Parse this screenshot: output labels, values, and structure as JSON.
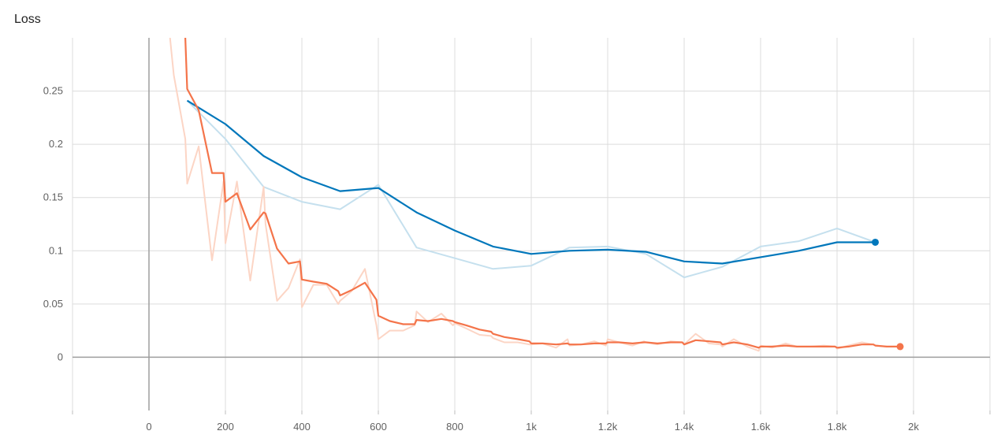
{
  "title": "Loss",
  "chart_data": {
    "type": "line",
    "title": "Loss",
    "xlabel": "",
    "ylabel": "",
    "xlim": [
      -200,
      2200
    ],
    "ylim": [
      -0.05,
      0.3
    ],
    "x_ticks": [
      0,
      200,
      400,
      600,
      800,
      1000,
      1200,
      1400,
      1600,
      1800,
      2000
    ],
    "x_tick_labels": [
      "0",
      "200",
      "400",
      "600",
      "800",
      "1k",
      "1.2k",
      "1.4k",
      "1.6k",
      "1.8k",
      "2k"
    ],
    "y_ticks": [
      0,
      0.05,
      0.1,
      0.15,
      0.2,
      0.25
    ],
    "y_tick_labels": [
      "0",
      "0.05",
      "0.1",
      "0.15",
      "0.2",
      "0.25"
    ],
    "grid": true,
    "series": [
      {
        "color": "#0077bb",
        "raw_color": "#c5e0ee",
        "smoothed": [
          [
            100,
            0.241
          ],
          [
            200,
            0.219
          ],
          [
            300,
            0.189
          ],
          [
            400,
            0.169
          ],
          [
            500,
            0.156
          ],
          [
            600,
            0.159
          ],
          [
            700,
            0.136
          ],
          [
            800,
            0.119
          ],
          [
            900,
            0.104
          ],
          [
            1000,
            0.097
          ],
          [
            1100,
            0.1
          ],
          [
            1200,
            0.101
          ],
          [
            1300,
            0.099
          ],
          [
            1400,
            0.09
          ],
          [
            1500,
            0.088
          ],
          [
            1600,
            0.094
          ],
          [
            1700,
            0.1
          ],
          [
            1800,
            0.108
          ],
          [
            1900,
            0.108
          ]
        ],
        "raw": [
          [
            100,
            0.241
          ],
          [
            200,
            0.205
          ],
          [
            300,
            0.16
          ],
          [
            400,
            0.146
          ],
          [
            500,
            0.139
          ],
          [
            600,
            0.162
          ],
          [
            700,
            0.103
          ],
          [
            800,
            0.093
          ],
          [
            900,
            0.083
          ],
          [
            1000,
            0.086
          ],
          [
            1100,
            0.103
          ],
          [
            1200,
            0.104
          ],
          [
            1300,
            0.097
          ],
          [
            1400,
            0.075
          ],
          [
            1500,
            0.085
          ],
          [
            1600,
            0.104
          ],
          [
            1700,
            0.109
          ],
          [
            1800,
            0.121
          ],
          [
            1900,
            0.108
          ]
        ]
      },
      {
        "color": "#f4744a",
        "raw_color": "#fcd5c5",
        "smoothed": [
          [
            95,
            0.3
          ],
          [
            100,
            0.252
          ],
          [
            130,
            0.232
          ],
          [
            165,
            0.173
          ],
          [
            195,
            0.173
          ],
          [
            200,
            0.146
          ],
          [
            230,
            0.154
          ],
          [
            265,
            0.12
          ],
          [
            300,
            0.136
          ],
          [
            305,
            0.135
          ],
          [
            335,
            0.102
          ],
          [
            365,
            0.088
          ],
          [
            395,
            0.09
          ],
          [
            400,
            0.073
          ],
          [
            430,
            0.071
          ],
          [
            465,
            0.069
          ],
          [
            495,
            0.062
          ],
          [
            500,
            0.058
          ],
          [
            530,
            0.063
          ],
          [
            565,
            0.07
          ],
          [
            595,
            0.054
          ],
          [
            600,
            0.039
          ],
          [
            630,
            0.034
          ],
          [
            665,
            0.031
          ],
          [
            695,
            0.031
          ],
          [
            700,
            0.035
          ],
          [
            730,
            0.034
          ],
          [
            765,
            0.036
          ],
          [
            795,
            0.034
          ],
          [
            800,
            0.033
          ],
          [
            830,
            0.03
          ],
          [
            865,
            0.026
          ],
          [
            895,
            0.024
          ],
          [
            900,
            0.022
          ],
          [
            930,
            0.019
          ],
          [
            965,
            0.017
          ],
          [
            995,
            0.015
          ],
          [
            1000,
            0.013
          ],
          [
            1030,
            0.013
          ],
          [
            1065,
            0.012
          ],
          [
            1095,
            0.013
          ],
          [
            1100,
            0.012
          ],
          [
            1130,
            0.012
          ],
          [
            1165,
            0.013
          ],
          [
            1195,
            0.013
          ],
          [
            1200,
            0.014
          ],
          [
            1230,
            0.014
          ],
          [
            1265,
            0.013
          ],
          [
            1295,
            0.014
          ],
          [
            1300,
            0.014
          ],
          [
            1330,
            0.013
          ],
          [
            1365,
            0.014
          ],
          [
            1395,
            0.014
          ],
          [
            1400,
            0.012
          ],
          [
            1430,
            0.016
          ],
          [
            1465,
            0.015
          ],
          [
            1495,
            0.014
          ],
          [
            1500,
            0.012
          ],
          [
            1530,
            0.014
          ],
          [
            1565,
            0.012
          ],
          [
            1595,
            0.009
          ],
          [
            1600,
            0.01
          ],
          [
            1630,
            0.01
          ],
          [
            1665,
            0.011
          ],
          [
            1695,
            0.01
          ],
          [
            1700,
            0.01
          ],
          [
            1730,
            0.01
          ],
          [
            1765,
            0.01
          ],
          [
            1795,
            0.01
          ],
          [
            1800,
            0.009
          ],
          [
            1830,
            0.01
          ],
          [
            1865,
            0.012
          ],
          [
            1895,
            0.012
          ],
          [
            1900,
            0.011
          ],
          [
            1930,
            0.01
          ],
          [
            1965,
            0.01
          ]
        ],
        "raw": [
          [
            55,
            0.3
          ],
          [
            65,
            0.265
          ],
          [
            95,
            0.205
          ],
          [
            100,
            0.163
          ],
          [
            130,
            0.198
          ],
          [
            165,
            0.091
          ],
          [
            195,
            0.165
          ],
          [
            200,
            0.107
          ],
          [
            230,
            0.165
          ],
          [
            265,
            0.072
          ],
          [
            300,
            0.16
          ],
          [
            305,
            0.125
          ],
          [
            335,
            0.053
          ],
          [
            365,
            0.065
          ],
          [
            395,
            0.092
          ],
          [
            400,
            0.047
          ],
          [
            430,
            0.068
          ],
          [
            465,
            0.068
          ],
          [
            495,
            0.05
          ],
          [
            500,
            0.053
          ],
          [
            530,
            0.062
          ],
          [
            565,
            0.083
          ],
          [
            595,
            0.03
          ],
          [
            600,
            0.017
          ],
          [
            630,
            0.025
          ],
          [
            665,
            0.025
          ],
          [
            695,
            0.03
          ],
          [
            700,
            0.043
          ],
          [
            730,
            0.033
          ],
          [
            765,
            0.041
          ],
          [
            795,
            0.03
          ],
          [
            800,
            0.032
          ],
          [
            830,
            0.027
          ],
          [
            865,
            0.021
          ],
          [
            895,
            0.02
          ],
          [
            900,
            0.018
          ],
          [
            930,
            0.014
          ],
          [
            965,
            0.014
          ],
          [
            995,
            0.012
          ],
          [
            1000,
            0.012
          ],
          [
            1030,
            0.013
          ],
          [
            1065,
            0.009
          ],
          [
            1095,
            0.017
          ],
          [
            1100,
            0.011
          ],
          [
            1130,
            0.012
          ],
          [
            1165,
            0.015
          ],
          [
            1195,
            0.011
          ],
          [
            1200,
            0.017
          ],
          [
            1230,
            0.014
          ],
          [
            1265,
            0.011
          ],
          [
            1295,
            0.015
          ],
          [
            1300,
            0.014
          ],
          [
            1330,
            0.012
          ],
          [
            1365,
            0.015
          ],
          [
            1395,
            0.014
          ],
          [
            1400,
            0.012
          ],
          [
            1430,
            0.022
          ],
          [
            1465,
            0.013
          ],
          [
            1495,
            0.012
          ],
          [
            1500,
            0.01
          ],
          [
            1530,
            0.017
          ],
          [
            1565,
            0.01
          ],
          [
            1595,
            0.006
          ],
          [
            1600,
            0.011
          ],
          [
            1630,
            0.009
          ],
          [
            1665,
            0.013
          ],
          [
            1695,
            0.01
          ],
          [
            1700,
            0.01
          ],
          [
            1730,
            0.01
          ],
          [
            1765,
            0.011
          ],
          [
            1795,
            0.01
          ],
          [
            1800,
            0.008
          ],
          [
            1830,
            0.011
          ],
          [
            1865,
            0.014
          ],
          [
            1895,
            0.012
          ],
          [
            1900,
            0.011
          ],
          [
            1930,
            0.01
          ],
          [
            1965,
            0.01
          ]
        ]
      }
    ]
  }
}
